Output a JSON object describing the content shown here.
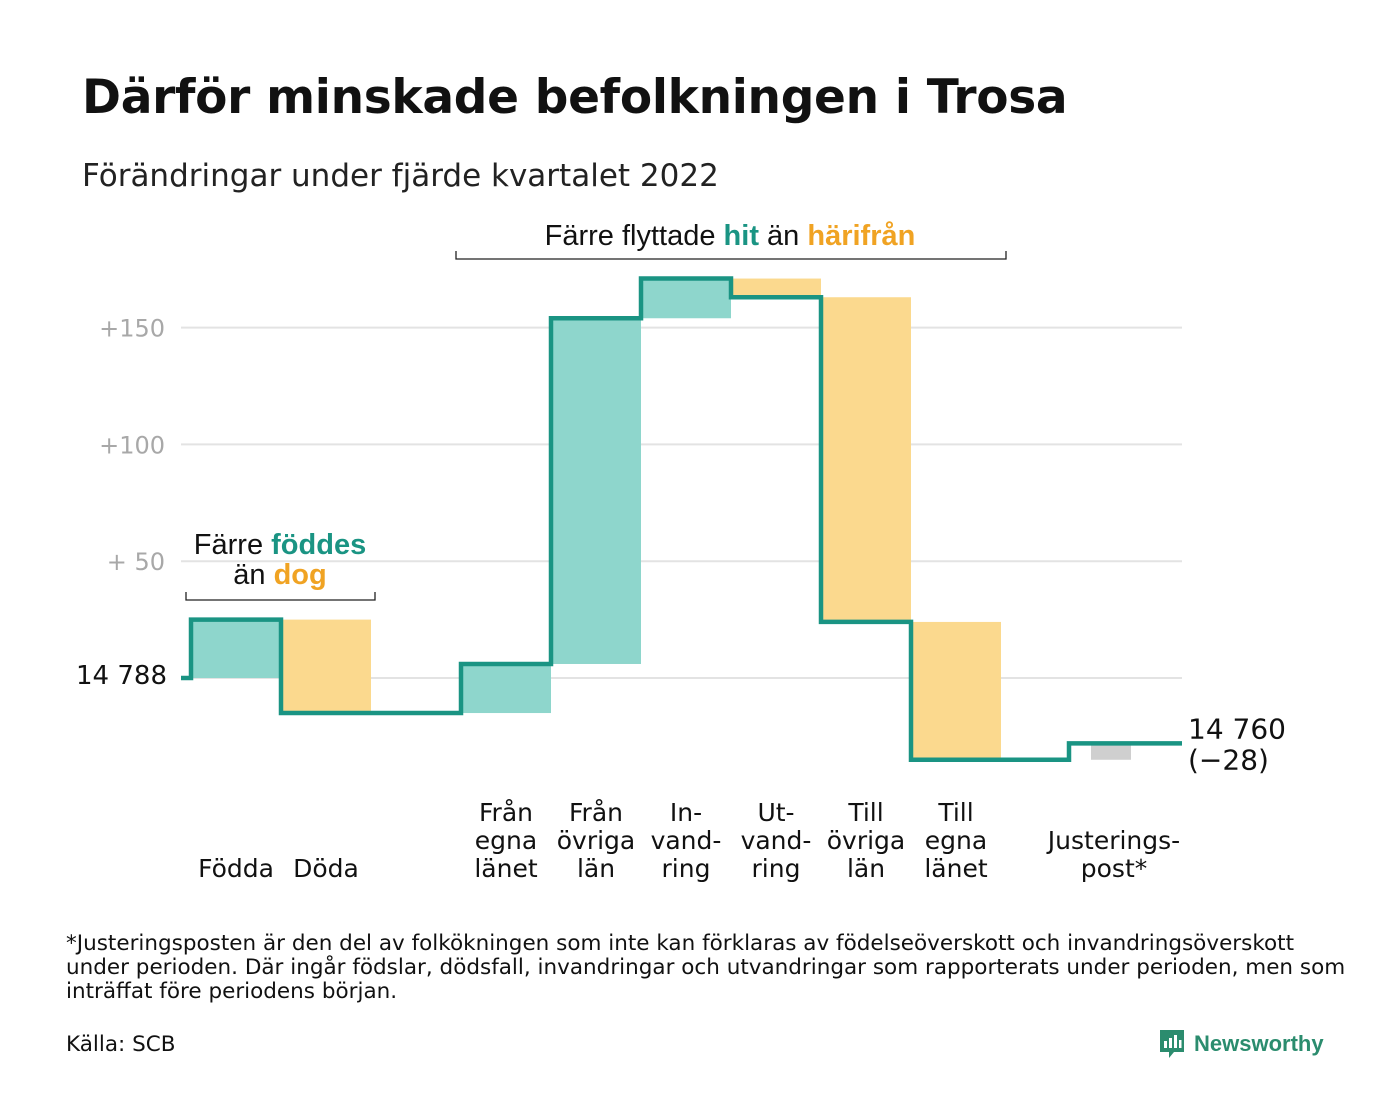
{
  "title": "Därför minskade befolkningen i Trosa",
  "subtitle": "Förändringar under fjärde kvartalet 2022",
  "colors": {
    "line": "#1a9483",
    "increase": "#8ed6cc",
    "decrease": "#fbd98e",
    "adjustment": "#cfcfcf",
    "teal_text": "#1a9483",
    "orange_text": "#f0a323",
    "grid": "#e3e3e3"
  },
  "chart_data": {
    "type": "waterfall",
    "start": {
      "value": 14788,
      "label": "14 788"
    },
    "end": {
      "value": 14760,
      "label": "14 760",
      "change_label": "(−28)"
    },
    "ylim": [
      -40,
      190
    ],
    "y_ticks": [
      {
        "value": 50,
        "label": "+ 50"
      },
      {
        "value": 100,
        "label": "+100"
      },
      {
        "value": 150,
        "label": "+150"
      }
    ],
    "steps": [
      {
        "label": [
          "Födda"
        ],
        "change": 25,
        "kind": "increase"
      },
      {
        "label": [
          "Döda"
        ],
        "change": -40,
        "kind": "decrease"
      },
      {
        "label": [
          "Från",
          "egna",
          "länet"
        ],
        "change": 21,
        "kind": "increase"
      },
      {
        "label": [
          "Från",
          "övriga",
          "län"
        ],
        "change": 148,
        "kind": "increase"
      },
      {
        "label": [
          "In-",
          "vand-",
          "ring"
        ],
        "change": 17,
        "kind": "increase"
      },
      {
        "label": [
          "Ut-",
          "vand-",
          "ring"
        ],
        "change": -8,
        "kind": "decrease"
      },
      {
        "label": [
          "Till",
          "övriga",
          "län"
        ],
        "change": -139,
        "kind": "decrease"
      },
      {
        "label": [
          "Till",
          "egna",
          "länet"
        ],
        "change": -59,
        "kind": "decrease"
      },
      {
        "label": [
          "Justerings-",
          "post*"
        ],
        "change": 7,
        "kind": "adjustment"
      }
    ],
    "annotations": [
      {
        "segments": [
          [
            "Färre ",
            "plain"
          ],
          [
            "föddes",
            "teal"
          ]
        ],
        "segments2": [
          [
            "än ",
            "plain"
          ],
          [
            "dog",
            "orange"
          ]
        ]
      },
      {
        "segments": [
          [
            "Färre flyttade ",
            "plain"
          ],
          [
            "hit",
            "teal"
          ],
          [
            " än ",
            "plain"
          ],
          [
            "härifrån",
            "orange"
          ]
        ]
      }
    ]
  },
  "footnote": "*Justeringsposten är den del av folkökningen som inte kan förklaras av födelseöverskott och invandringsöverskott under perioden. Där ingår födslar, dödsfall, invandringar och utvandringar som rapporterats under perioden, men som inträffat före periodens början.",
  "source": "Källa: SCB",
  "brand": "Newsworthy",
  "brand_icon": "newsworthy-logo-icon"
}
